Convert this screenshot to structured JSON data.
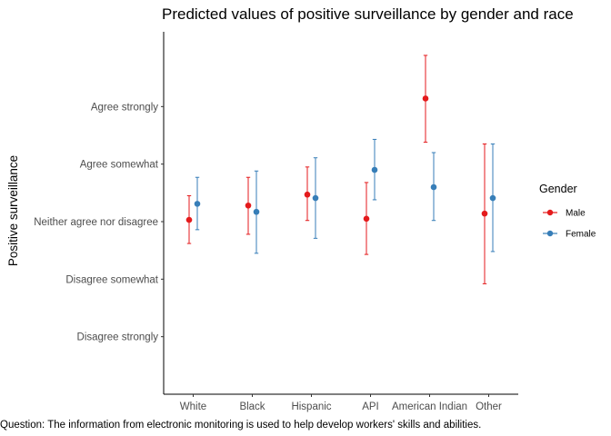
{
  "chart_data": {
    "type": "scatter",
    "subtype": "point-range",
    "title": "Predicted values of positive surveillance by gender and race",
    "xlabel": "",
    "ylabel": "Positive surveillance",
    "caption": "Question: The information from electronic monitoring is used to help develop workers' skills and abilities.",
    "categories": [
      "White",
      "Black",
      "Hispanic",
      "API",
      "American Indian",
      "Other"
    ],
    "y_tick_labels": [
      "Disagree strongly",
      "Disagree somewhat",
      "Neither agree nor disagree",
      "Agree somewhat",
      "Agree strongly"
    ],
    "y_tick_values": [
      1,
      2,
      3,
      4,
      5
    ],
    "ylim": [
      0,
      6.3
    ],
    "grid": false,
    "legend": {
      "title": "Gender",
      "position": "right"
    },
    "series": [
      {
        "name": "Male",
        "color": "#e41a1c",
        "values": [
          3.03,
          3.28,
          3.47,
          3.05,
          5.14,
          3.14
        ],
        "lower": [
          2.62,
          2.78,
          3.02,
          2.43,
          4.38,
          1.92
        ],
        "upper": [
          3.45,
          3.77,
          3.95,
          3.68,
          5.89,
          4.35
        ]
      },
      {
        "name": "Female",
        "color": "#377eb8",
        "values": [
          3.31,
          3.17,
          3.41,
          3.9,
          3.6,
          3.41
        ],
        "lower": [
          2.86,
          2.45,
          2.71,
          3.38,
          3.02,
          2.48
        ],
        "upper": [
          3.77,
          3.88,
          4.11,
          4.43,
          4.2,
          4.35
        ]
      }
    ]
  }
}
